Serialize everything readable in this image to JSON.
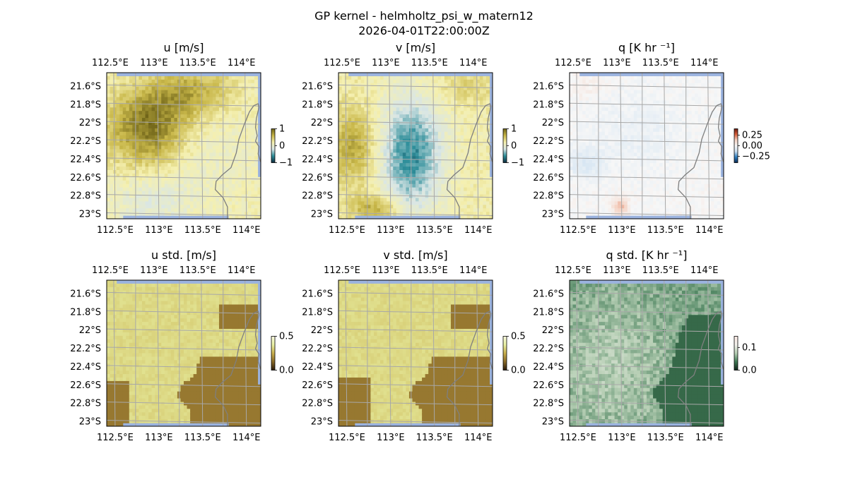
{
  "figure": {
    "title": "GP kernel - helmholtz_psi_w_matern12",
    "subtitle": "2026-04-01T22:00:00Z"
  },
  "chart_data": [
    {
      "type": "heatmap",
      "id": "u",
      "title": "u [m/s]",
      "xticks": [
        "112.5°E",
        "113°E",
        "113.5°E",
        "114°E"
      ],
      "yticks": [
        "21.6°S",
        "21.8°S",
        "22°S",
        "22.2°S",
        "22.4°S",
        "22.6°S",
        "22.8°S",
        "23°S"
      ],
      "lon_range": [
        112.42,
        114.18
      ],
      "lat_range": [
        -23.05,
        -21.45
      ],
      "colorbar": {
        "min": -1,
        "max": 1,
        "ticks": [
          {
            "v": 1,
            "label": "1"
          },
          {
            "v": 0,
            "label": "0"
          },
          {
            "v": -1,
            "label": "−1"
          }
        ],
        "colors": [
          "#0d2b3e",
          "#2e8e9a",
          "#d9e6e6",
          "#f5f0b0",
          "#c9b84a",
          "#6f6418"
        ]
      },
      "coastline": true
    },
    {
      "type": "heatmap",
      "id": "v",
      "title": "v [m/s]",
      "xticks": [
        "112.5°E",
        "113°E",
        "113.5°E",
        "114°E"
      ],
      "yticks": [
        "21.6°S",
        "21.8°S",
        "22°S",
        "22.2°S",
        "22.4°S",
        "22.6°S",
        "22.8°S",
        "23°S"
      ],
      "lon_range": [
        112.42,
        114.18
      ],
      "lat_range": [
        -23.05,
        -21.45
      ],
      "colorbar": {
        "min": -1,
        "max": 1,
        "ticks": [
          {
            "v": 1,
            "label": "1"
          },
          {
            "v": 0,
            "label": "0"
          },
          {
            "v": -1,
            "label": "−1"
          }
        ],
        "colors": [
          "#0d2b3e",
          "#2e8e9a",
          "#d9e6e6",
          "#f5f0b0",
          "#c9b84a",
          "#6f6418"
        ]
      },
      "coastline": true
    },
    {
      "type": "heatmap",
      "id": "q",
      "title": "q [K hr ⁻¹]",
      "xticks": [
        "112.5°E",
        "113°E",
        "113.5°E",
        "114°E"
      ],
      "yticks": [
        "21.6°S",
        "21.8°S",
        "22°S",
        "22.2°S",
        "22.4°S",
        "22.6°S",
        "22.8°S",
        "23°S"
      ],
      "lon_range": [
        112.42,
        114.18
      ],
      "lat_range": [
        -23.05,
        -21.45
      ],
      "colorbar": {
        "min": -0.4,
        "max": 0.4,
        "ticks": [
          {
            "v": 0.25,
            "label": "0.25"
          },
          {
            "v": 0.0,
            "label": "0.00"
          },
          {
            "v": -0.25,
            "label": "−0.25"
          }
        ],
        "colors": [
          "#0a2a55",
          "#2f7fc0",
          "#cfe2f2",
          "#f7f7f7",
          "#f5d3c4",
          "#d9603b",
          "#6b1a0e"
        ]
      },
      "coastline": true
    },
    {
      "type": "heatmap",
      "id": "u_std",
      "title": "u std. [m/s]",
      "xticks": [
        "112.5°E",
        "113°E",
        "113.5°E",
        "114°E"
      ],
      "yticks": [
        "21.6°S",
        "21.8°S",
        "22°S",
        "22.2°S",
        "22.4°S",
        "22.6°S",
        "22.8°S",
        "23°S"
      ],
      "lon_range": [
        112.42,
        114.18
      ],
      "lat_range": [
        -23.05,
        -21.45
      ],
      "colorbar": {
        "min": 0,
        "max": 0.5,
        "ticks": [
          {
            "v": 0.5,
            "label": "0.5"
          },
          {
            "v": 0.0,
            "label": "0.0"
          }
        ],
        "colors": [
          "#2a1a0a",
          "#8a6a28",
          "#c9b04e",
          "#e8f0a4",
          "#fbfbe0"
        ]
      },
      "coastline": true
    },
    {
      "type": "heatmap",
      "id": "v_std",
      "title": "v std. [m/s]",
      "xticks": [
        "112.5°E",
        "113°E",
        "113.5°E",
        "114°E"
      ],
      "yticks": [
        "21.6°S",
        "21.8°S",
        "22°S",
        "22.2°S",
        "22.4°S",
        "22.6°S",
        "22.8°S",
        "23°S"
      ],
      "lon_range": [
        112.42,
        114.18
      ],
      "lat_range": [
        -23.05,
        -21.45
      ],
      "colorbar": {
        "min": 0,
        "max": 0.5,
        "ticks": [
          {
            "v": 0.5,
            "label": "0.5"
          },
          {
            "v": 0.0,
            "label": "0.0"
          }
        ],
        "colors": [
          "#2a1a0a",
          "#8a6a28",
          "#c9b04e",
          "#e8f0a4",
          "#fbfbe0"
        ]
      },
      "coastline": true
    },
    {
      "type": "heatmap",
      "id": "q_std",
      "title": "q std. [K hr ⁻¹]",
      "xticks": [
        "112.5°E",
        "113°E",
        "113.5°E",
        "114°E"
      ],
      "yticks": [
        "21.6°S",
        "21.8°S",
        "22°S",
        "22.2°S",
        "22.4°S",
        "22.6°S",
        "22.8°S",
        "23°S"
      ],
      "lon_range": [
        112.42,
        114.18
      ],
      "lat_range": [
        -23.05,
        -21.45
      ],
      "colorbar": {
        "min": 0,
        "max": 0.15,
        "ticks": [
          {
            "v": 0.1,
            "label": "0.1"
          },
          {
            "v": 0.0,
            "label": "0.0"
          }
        ],
        "colors": [
          "#10241a",
          "#3f7a55",
          "#b7cfb5",
          "#f3f2ee",
          "#fde9e4"
        ]
      },
      "coastline": true
    }
  ]
}
